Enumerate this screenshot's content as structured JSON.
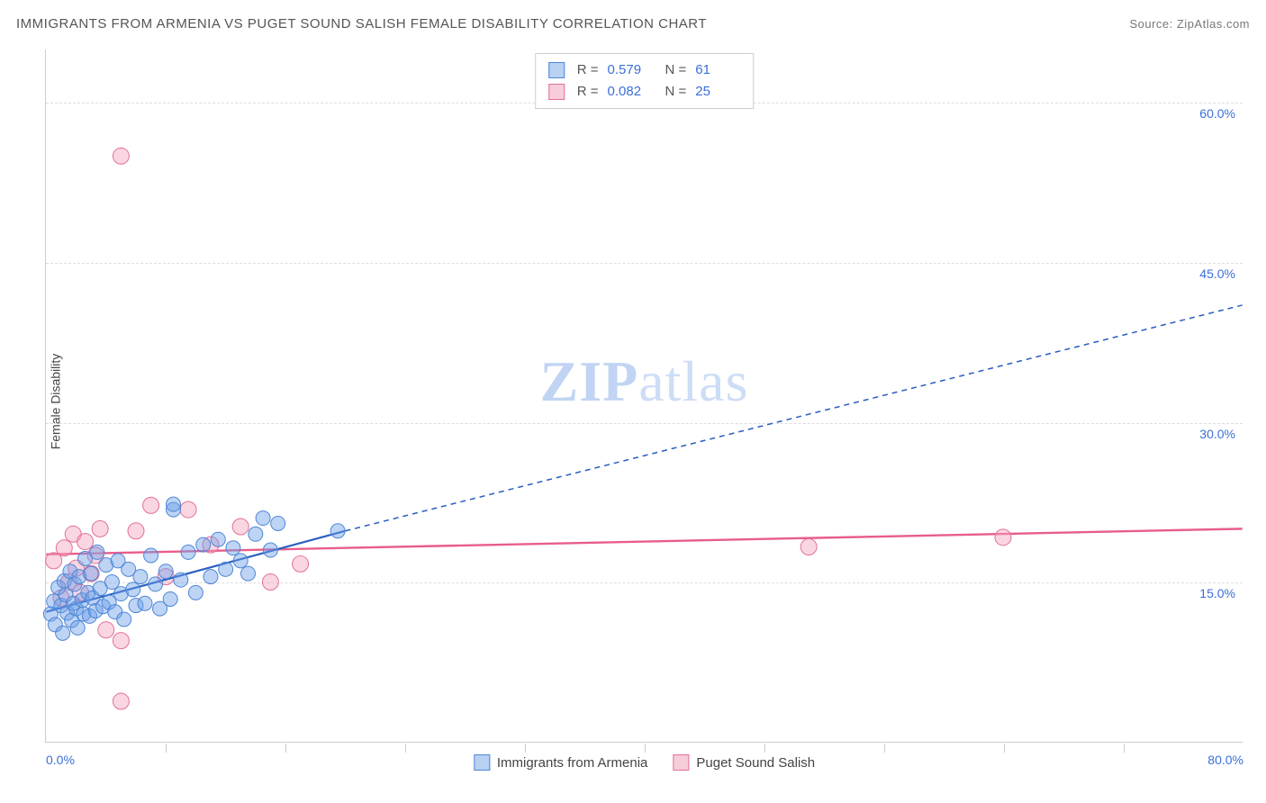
{
  "title": "IMMIGRANTS FROM ARMENIA VS PUGET SOUND SALISH FEMALE DISABILITY CORRELATION CHART",
  "source": "Source: ZipAtlas.com",
  "watermark": {
    "bold": "ZIP",
    "rest": "atlas"
  },
  "ylabel": "Female Disability",
  "chart": {
    "type": "scatter",
    "xlim": [
      0,
      80
    ],
    "ylim": [
      0,
      65
    ],
    "ytick_step": 15,
    "xtick_step_minor": 10,
    "grid_color": "#dddddd",
    "axis_color": "#cccccc",
    "background_color": "#ffffff",
    "yticks": [
      {
        "v": 15,
        "label": "15.0%"
      },
      {
        "v": 30,
        "label": "30.0%"
      },
      {
        "v": 45,
        "label": "45.0%"
      },
      {
        "v": 60,
        "label": "60.0%"
      }
    ],
    "xticks_labels": [
      {
        "v": 0,
        "label": "0.0%",
        "align": "left"
      },
      {
        "v": 80,
        "label": "80.0%",
        "align": "right"
      }
    ],
    "xticks_minor": [
      8,
      16,
      24,
      32,
      40,
      48,
      56,
      64,
      72
    ]
  },
  "series": {
    "blue": {
      "name": "Immigrants from Armenia",
      "color_fill": "rgba(108,160,232,0.45)",
      "color_stroke": "#4f86d6",
      "swatch_fill": "#b8d0f2",
      "swatch_stroke": "#4f86d6",
      "marker_radius": 8,
      "R": "0.579",
      "N": "61",
      "trend": {
        "solid": {
          "x1": 0,
          "y1": 12.2,
          "x2": 20,
          "y2": 19.8
        },
        "dashed": {
          "x1": 20,
          "y1": 19.8,
          "x2": 80,
          "y2": 41.0
        },
        "stroke": "#2b5fc0",
        "width": 2.2,
        "dash": "6 5"
      },
      "points": [
        [
          0.3,
          12.0
        ],
        [
          0.5,
          13.2
        ],
        [
          0.6,
          11.0
        ],
        [
          0.8,
          14.5
        ],
        [
          1.0,
          12.8
        ],
        [
          1.1,
          10.2
        ],
        [
          1.2,
          15.1
        ],
        [
          1.3,
          13.8
        ],
        [
          1.4,
          12.1
        ],
        [
          1.6,
          16.0
        ],
        [
          1.7,
          11.4
        ],
        [
          1.8,
          13.0
        ],
        [
          1.9,
          14.8
        ],
        [
          2.0,
          12.5
        ],
        [
          2.1,
          10.7
        ],
        [
          2.2,
          15.5
        ],
        [
          2.4,
          13.3
        ],
        [
          2.5,
          12.0
        ],
        [
          2.6,
          17.2
        ],
        [
          2.8,
          14.0
        ],
        [
          2.9,
          11.8
        ],
        [
          3.0,
          15.8
        ],
        [
          3.1,
          13.5
        ],
        [
          3.3,
          12.3
        ],
        [
          3.4,
          17.8
        ],
        [
          3.6,
          14.4
        ],
        [
          3.8,
          12.7
        ],
        [
          4.0,
          16.6
        ],
        [
          4.2,
          13.1
        ],
        [
          4.4,
          15.0
        ],
        [
          4.6,
          12.2
        ],
        [
          4.8,
          17.0
        ],
        [
          5.0,
          13.9
        ],
        [
          5.2,
          11.5
        ],
        [
          5.5,
          16.2
        ],
        [
          5.8,
          14.3
        ],
        [
          6.0,
          12.8
        ],
        [
          6.3,
          15.5
        ],
        [
          6.6,
          13.0
        ],
        [
          7.0,
          17.5
        ],
        [
          7.3,
          14.8
        ],
        [
          7.6,
          12.5
        ],
        [
          8.0,
          16.0
        ],
        [
          8.3,
          13.4
        ],
        [
          8.5,
          21.8
        ],
        [
          8.5,
          22.3
        ],
        [
          9.0,
          15.2
        ],
        [
          9.5,
          17.8
        ],
        [
          10.0,
          14.0
        ],
        [
          10.5,
          18.5
        ],
        [
          11.0,
          15.5
        ],
        [
          11.5,
          19.0
        ],
        [
          12.0,
          16.2
        ],
        [
          12.5,
          18.2
        ],
        [
          13.0,
          17.0
        ],
        [
          13.5,
          15.8
        ],
        [
          14.0,
          19.5
        ],
        [
          14.5,
          21.0
        ],
        [
          15.0,
          18.0
        ],
        [
          19.5,
          19.8
        ],
        [
          15.5,
          20.5
        ]
      ]
    },
    "pink": {
      "name": "Puget Sound Salish",
      "color_fill": "rgba(244,164,190,0.45)",
      "color_stroke": "#e27098",
      "swatch_fill": "#f6cdd9",
      "swatch_stroke": "#e27098",
      "marker_radius": 9,
      "R": "0.082",
      "N": "25",
      "trend": {
        "solid": {
          "x1": 0,
          "y1": 17.6,
          "x2": 80,
          "y2": 20.0
        },
        "dashed": null,
        "stroke": "#e85d8a",
        "width": 2.4,
        "dash": null
      },
      "points": [
        [
          0.5,
          17.0
        ],
        [
          1.0,
          13.5
        ],
        [
          1.2,
          18.2
        ],
        [
          1.5,
          15.0
        ],
        [
          1.8,
          19.5
        ],
        [
          2.0,
          16.3
        ],
        [
          2.3,
          14.0
        ],
        [
          2.6,
          18.8
        ],
        [
          3.0,
          15.8
        ],
        [
          3.3,
          17.5
        ],
        [
          3.6,
          20.0
        ],
        [
          4.0,
          10.5
        ],
        [
          5.0,
          9.5
        ],
        [
          5.0,
          55.0
        ],
        [
          6.0,
          19.8
        ],
        [
          7.0,
          22.2
        ],
        [
          8.0,
          15.5
        ],
        [
          9.5,
          21.8
        ],
        [
          5.0,
          3.8
        ],
        [
          11.0,
          18.5
        ],
        [
          13.0,
          20.2
        ],
        [
          15.0,
          15.0
        ],
        [
          17.0,
          16.7
        ],
        [
          51.0,
          18.3
        ],
        [
          64.0,
          19.2
        ]
      ]
    }
  },
  "stat_legend": {
    "r_label": "R =",
    "n_label": "N ="
  }
}
